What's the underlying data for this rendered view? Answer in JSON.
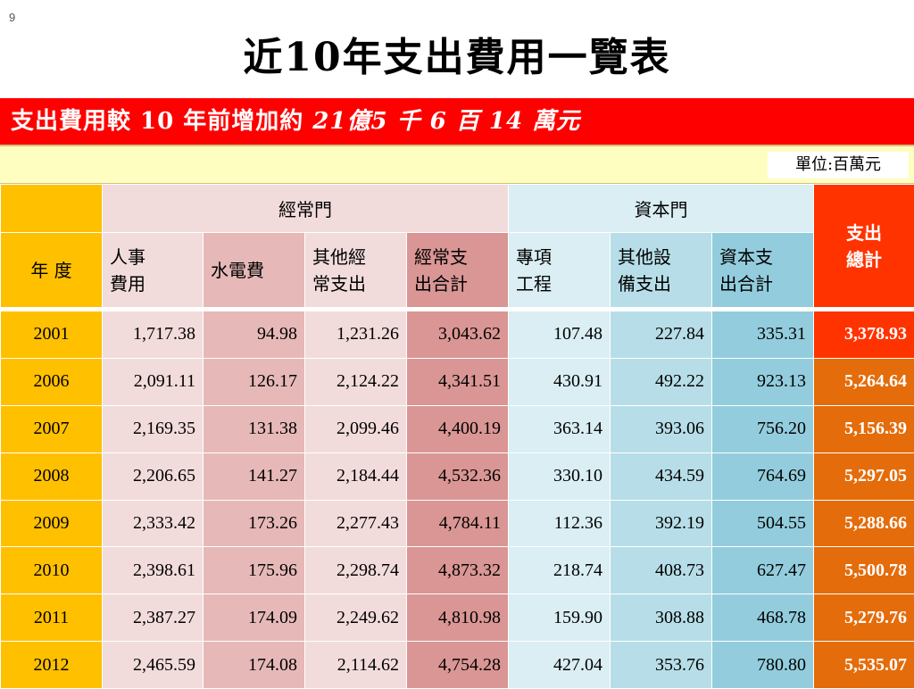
{
  "slide_number": "9",
  "title": "近10年支出費用一覽表",
  "banner": {
    "prefix": "支出費用較 10 年前增加約",
    "amount": "21億5 千 6 百 14 萬元"
  },
  "unit_label": "單位:百萬元",
  "table": {
    "group_headers": {
      "operating": "經常門",
      "capital": "資本門",
      "total": "支出\n總計"
    },
    "year_header": "年 度",
    "sub_headers": [
      "人事\n費用",
      "水電費",
      "其他經\n常支出",
      "經常支\n出合計",
      "專項\n工程",
      "其他設\n備支出",
      "資本支\n出合計"
    ],
    "rows": [
      {
        "year": "2001",
        "values": [
          "1,717.38",
          "94.98",
          "1,231.26",
          "3,043.62",
          "107.48",
          "227.84",
          "335.31"
        ],
        "total": "3,378.93"
      },
      {
        "year": "2006",
        "values": [
          "2,091.11",
          "126.17",
          "2,124.22",
          "4,341.51",
          "430.91",
          "492.22",
          "923.13"
        ],
        "total": "5,264.64"
      },
      {
        "year": "2007",
        "values": [
          "2,169.35",
          "131.38",
          "2,099.46",
          "4,400.19",
          "363.14",
          "393.06",
          "756.20"
        ],
        "total": "5,156.39"
      },
      {
        "year": "2008",
        "values": [
          "2,206.65",
          "141.27",
          "2,184.44",
          "4,532.36",
          "330.10",
          "434.59",
          "764.69"
        ],
        "total": "5,297.05"
      },
      {
        "year": "2009",
        "values": [
          "2,333.42",
          "173.26",
          "2,277.43",
          "4,784.11",
          "112.36",
          "392.19",
          "504.55"
        ],
        "total": "5,288.66"
      },
      {
        "year": "2010",
        "values": [
          "2,398.61",
          "175.96",
          "2,298.74",
          "4,873.32",
          "218.74",
          "408.73",
          "627.47"
        ],
        "total": "5,500.78"
      },
      {
        "year": "2011",
        "values": [
          "2,387.27",
          "174.09",
          "2,249.62",
          "4,810.98",
          "159.90",
          "308.88",
          "468.78"
        ],
        "total": "5,279.76"
      },
      {
        "year": "2012",
        "values": [
          "2,465.59",
          "174.08",
          "2,114.62",
          "4,754.28",
          "427.04",
          "353.76",
          "780.80"
        ],
        "total": "5,535.07"
      }
    ]
  }
}
